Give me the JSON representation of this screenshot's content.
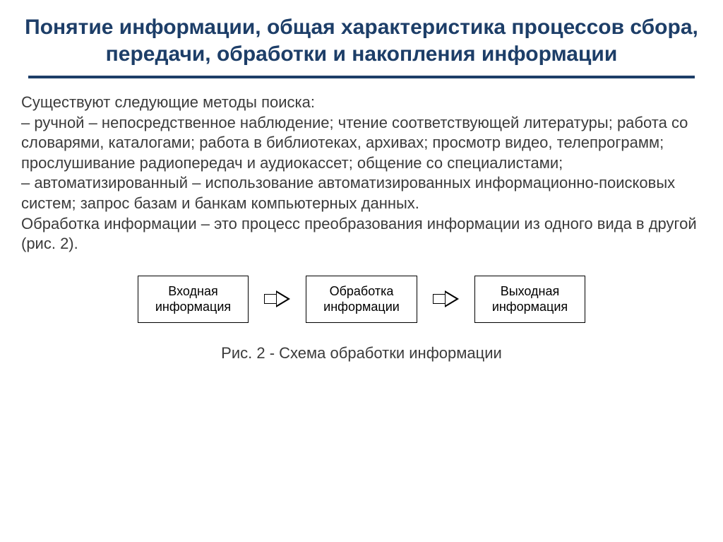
{
  "title": "Понятие информации, общая характеристика процессов сбора, передачи, обработки и накопления информации",
  "body": {
    "intro": "Существуют следующие методы поиска:",
    "item1": "–   ручной – непосредственное наблюдение; чтение соответствующей литературы; работа со словарями, каталогами; работа в библиотеках, архивах; просмотр видео, телепрограмм; прослушивание радиопередач и аудиокассет; общение со специалистами;",
    "item2": "–   автоматизированный – использование автоматизированных информационно-поисковых систем; запрос базам и банкам компьютерных  данных.",
    "para2": "Обработка информации – это процесс преобразования информации из  одного вида в другой (рис. 2)."
  },
  "diagram": {
    "box1": "Входная\nинформация",
    "box2": "Обработка\nинформации",
    "box3": "Выходная\nинформация"
  },
  "caption": "Рис. 2 - Схема обработки информации",
  "colors": {
    "title": "#1d3e68",
    "rule": "#1d3e68",
    "body_text": "#3b3b3b",
    "box_border": "#000000",
    "background": "#ffffff"
  },
  "typography": {
    "title_fontsize": 30,
    "body_fontsize": 22,
    "box_fontsize": 18,
    "caption_fontsize": 22,
    "title_weight": "bold",
    "font_family": "Arial"
  }
}
